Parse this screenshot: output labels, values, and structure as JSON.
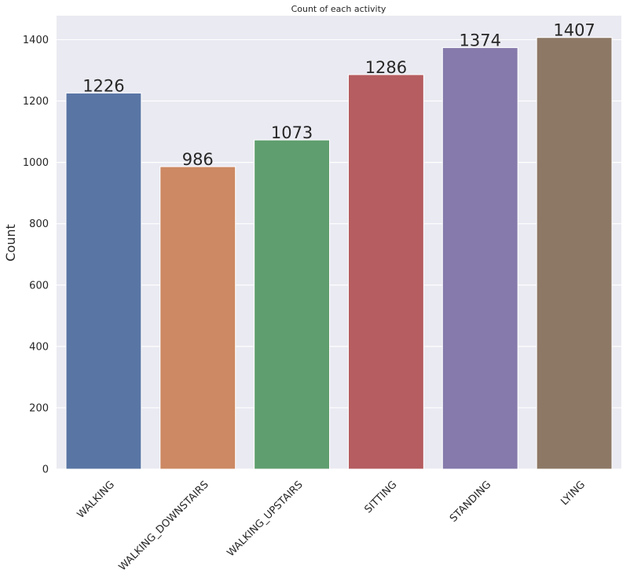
{
  "chart_data": {
    "type": "bar",
    "title": "Count of each activity",
    "xlabel": "",
    "ylabel": "Count",
    "categories": [
      "WALKING",
      "WALKING_DOWNSTAIRS",
      "WALKING_UPSTAIRS",
      "SITTING",
      "STANDING",
      "LYING"
    ],
    "values": [
      1226,
      986,
      1073,
      1286,
      1374,
      1407
    ],
    "data_labels": [
      "1226",
      "986",
      "1073",
      "1286",
      "1374",
      "1407"
    ],
    "colors": [
      "#5975a4",
      "#cc8963",
      "#5f9e6e",
      "#b55d60",
      "#857aab",
      "#8d7866"
    ],
    "ylim": [
      0,
      1478
    ],
    "yticks": [
      0,
      200,
      400,
      600,
      800,
      1000,
      1200,
      1400
    ],
    "ytick_labels": [
      "0",
      "200",
      "400",
      "600",
      "800",
      "1000",
      "1200",
      "1400"
    ],
    "x_tick_rotation": 45,
    "grid": true,
    "background": "#eaeaf2",
    "legend": "none"
  }
}
